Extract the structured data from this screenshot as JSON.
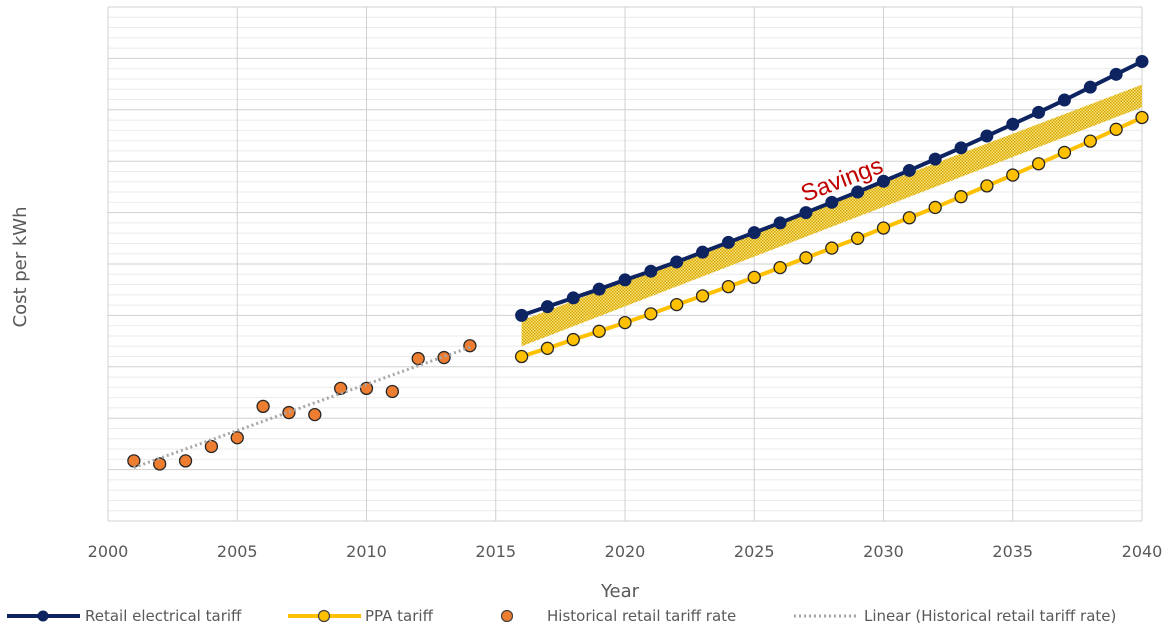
{
  "chart_data": {
    "type": "line",
    "title": "",
    "xlabel": "Year",
    "ylabel": "Cost per kWh",
    "xlim": [
      2000,
      2040
    ],
    "x_ticks": [
      "2000",
      "2005",
      "2010",
      "2015",
      "2020",
      "2025",
      "2030",
      "2035",
      "2040"
    ],
    "ylim": [
      0,
      100
    ],
    "y_tick_labels_shown": false,
    "grid": true,
    "legend_position": "bottom",
    "annotation": {
      "text": "Savings",
      "x": 2028.5,
      "y": 65
    },
    "series": [
      {
        "name": "Retail electrical tariff",
        "kind": "line-markers",
        "color": "#0d2461",
        "x": [
          2016,
          2017,
          2018,
          2019,
          2020,
          2021,
          2022,
          2023,
          2024,
          2025,
          2026,
          2027,
          2028,
          2029,
          2030,
          2031,
          2032,
          2033,
          2034,
          2035,
          2036,
          2037,
          2038,
          2039,
          2040
        ],
        "y": [
          40.0,
          41.7,
          43.4,
          45.1,
          46.9,
          48.6,
          50.4,
          52.3,
          54.2,
          56.1,
          58.0,
          60.0,
          62.0,
          64.0,
          66.1,
          68.2,
          70.4,
          72.6,
          74.9,
          77.2,
          79.5,
          81.9,
          84.4,
          86.9,
          89.4
        ]
      },
      {
        "name": "PPA tariff",
        "kind": "line-markers",
        "color": "#ffc000",
        "x": [
          2016,
          2017,
          2018,
          2019,
          2020,
          2021,
          2022,
          2023,
          2024,
          2025,
          2026,
          2027,
          2028,
          2029,
          2030,
          2031,
          2032,
          2033,
          2034,
          2035,
          2036,
          2037,
          2038,
          2039,
          2040
        ],
        "y": [
          32.0,
          33.6,
          35.3,
          36.9,
          38.6,
          40.3,
          42.1,
          43.8,
          45.6,
          47.4,
          49.3,
          51.2,
          53.1,
          55.0,
          57.0,
          59.0,
          61.0,
          63.1,
          65.2,
          67.3,
          69.5,
          71.7,
          73.9,
          76.2,
          78.5
        ]
      },
      {
        "name": "Historical retail tariff rate",
        "kind": "markers",
        "color": "#ed7d31",
        "x": [
          2001,
          2002,
          2003,
          2004,
          2005,
          2006,
          2007,
          2008,
          2009,
          2010,
          2011,
          2012,
          2013,
          2014
        ],
        "y": [
          11.7,
          11.1,
          11.7,
          14.5,
          16.2,
          22.3,
          21.1,
          20.7,
          25.8,
          25.8,
          25.2,
          31.6,
          31.8,
          34.1
        ]
      },
      {
        "name": "Linear (Historical retail tariff rate)",
        "kind": "trendline",
        "color": "#a6a6a6",
        "x": [
          2001,
          2014
        ],
        "y": [
          10.4,
          33.8
        ]
      }
    ],
    "savings_band": {
      "x": [
        2016,
        2040
      ],
      "upper": [
        39.0,
        84.9
      ],
      "lower": [
        34.0,
        80.5
      ],
      "color": "#e8c31a"
    }
  }
}
